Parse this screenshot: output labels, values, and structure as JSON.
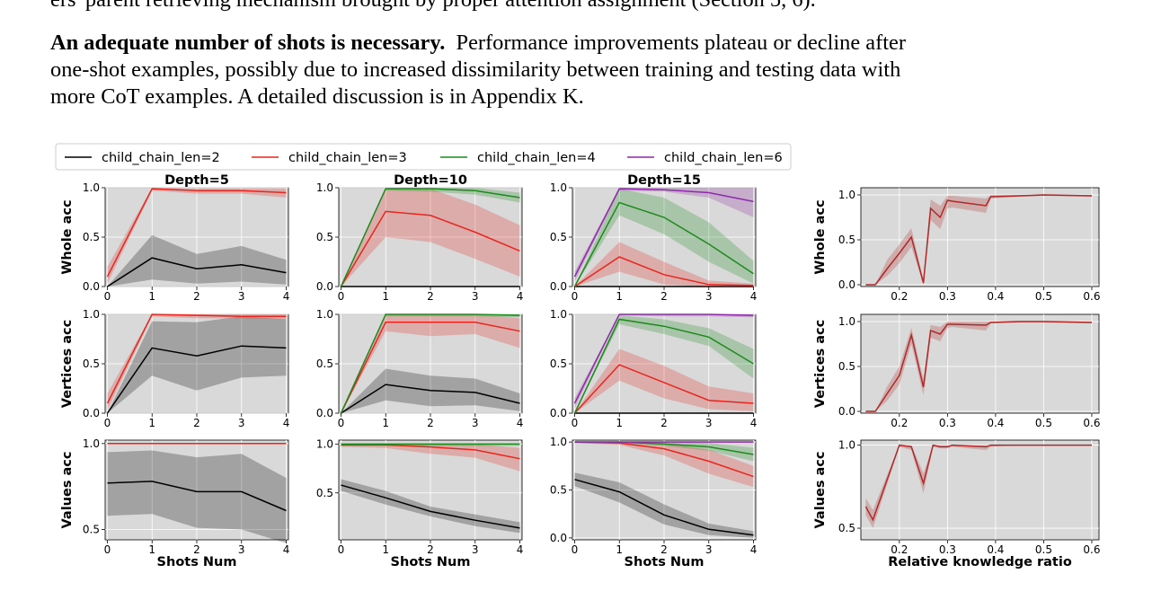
{
  "text": {
    "line0": "ers' parent retrieving mechanism brought by proper attention assignment (Section 5, 6).",
    "heading": "An adequate number of shots is necessary.",
    "line1_rest": "Performance improvements plateau or decline after",
    "line2": "one-shot examples, possibly due to increased dissimilarity between training and testing data with",
    "line3": "more CoT examples. A detailed discussion is in Appendix K."
  },
  "legend": [
    "child_chain_len=2",
    "child_chain_len=3",
    "child_chain_len=4",
    "child_chain_len=6"
  ],
  "colors": {
    "len2": "#000000",
    "len3": "#e8261f",
    "len4": "#1c8a1c",
    "len6": "#8e2aa8",
    "ratio": "#b02828",
    "panel_bg": "#d9d9d9"
  },
  "figure_labels": {
    "col_titles": [
      "Depth=5",
      "Depth=10",
      "Depth=15"
    ],
    "row_labels": [
      "Whole acc",
      "Vertices acc",
      "Values acc"
    ],
    "xlabel_shots": "Shots Num",
    "xlabel_ratio": "Relative knowledge ratio"
  },
  "chart_data": [
    {
      "type": "line",
      "panel": "depth5-whole",
      "title": "Depth=5",
      "ylabel": "Whole acc",
      "xlabel": "",
      "x": [
        0,
        1,
        2,
        3,
        4
      ],
      "ylim": [
        0,
        1
      ],
      "yticks": [
        0,
        0.5,
        1.0
      ],
      "series": [
        {
          "name": "child_chain_len=2",
          "values": [
            0.0,
            0.29,
            0.18,
            0.22,
            0.14
          ],
          "lower": [
            0.0,
            0.07,
            0.03,
            0.05,
            0.02
          ],
          "upper": [
            0.0,
            0.52,
            0.33,
            0.41,
            0.27
          ]
        },
        {
          "name": "child_chain_len=3",
          "values": [
            0.1,
            0.99,
            0.97,
            0.97,
            0.95
          ],
          "lower": [
            0.03,
            0.97,
            0.94,
            0.94,
            0.9
          ],
          "upper": [
            0.2,
            1.0,
            0.99,
            0.99,
            0.99
          ]
        }
      ]
    },
    {
      "type": "line",
      "panel": "depth10-whole",
      "title": "Depth=10",
      "ylabel": "",
      "xlabel": "",
      "x": [
        0,
        1,
        2,
        3,
        4
      ],
      "ylim": [
        0,
        1
      ],
      "yticks": [
        0,
        0.5,
        1.0
      ],
      "series": [
        {
          "name": "child_chain_len=2",
          "values": [
            0.0,
            0.0,
            0.0,
            0.0,
            0.0
          ]
        },
        {
          "name": "child_chain_len=3",
          "values": [
            0.0,
            0.76,
            0.72,
            0.55,
            0.36
          ],
          "lower": [
            0.0,
            0.5,
            0.45,
            0.28,
            0.1
          ],
          "upper": [
            0.0,
            0.99,
            0.99,
            0.83,
            0.62
          ]
        },
        {
          "name": "child_chain_len=4",
          "values": [
            0.0,
            0.99,
            0.99,
            0.97,
            0.9
          ],
          "lower": [
            0.0,
            0.97,
            0.96,
            0.93,
            0.85
          ],
          "upper": [
            0.0,
            1.0,
            1.0,
            1.0,
            0.95
          ]
        }
      ]
    },
    {
      "type": "line",
      "panel": "depth15-whole",
      "title": "Depth=15",
      "ylabel": "",
      "xlabel": "",
      "x": [
        0,
        1,
        2,
        3,
        4
      ],
      "ylim": [
        0,
        1
      ],
      "yticks": [
        0,
        0.5,
        1.0
      ],
      "series": [
        {
          "name": "child_chain_len=2",
          "values": [
            0.0,
            0.0,
            0.0,
            0.0,
            0.0
          ]
        },
        {
          "name": "child_chain_len=3",
          "values": [
            0.0,
            0.3,
            0.12,
            0.02,
            0.01
          ],
          "lower": [
            0.0,
            0.15,
            0.02,
            0.0,
            0.0
          ],
          "upper": [
            0.0,
            0.45,
            0.25,
            0.06,
            0.03
          ]
        },
        {
          "name": "child_chain_len=4",
          "values": [
            0.0,
            0.85,
            0.7,
            0.43,
            0.13
          ],
          "lower": [
            0.0,
            0.72,
            0.53,
            0.25,
            0.03
          ],
          "upper": [
            0.0,
            0.99,
            0.9,
            0.65,
            0.26
          ]
        },
        {
          "name": "child_chain_len=6",
          "values": [
            0.1,
            0.99,
            0.98,
            0.95,
            0.86
          ],
          "lower": [
            0.05,
            0.97,
            0.96,
            0.9,
            0.7
          ],
          "upper": [
            0.15,
            1.0,
            1.0,
            1.0,
            1.0
          ]
        }
      ]
    },
    {
      "type": "line",
      "panel": "depth5-vertices",
      "title": "",
      "ylabel": "Vertices acc",
      "xlabel": "",
      "x": [
        0,
        1,
        2,
        3,
        4
      ],
      "ylim": [
        0,
        1
      ],
      "yticks": [
        0,
        0.5,
        1.0
      ],
      "series": [
        {
          "name": "child_chain_len=2",
          "values": [
            0.0,
            0.66,
            0.58,
            0.68,
            0.66
          ],
          "lower": [
            0.0,
            0.38,
            0.23,
            0.36,
            0.38
          ],
          "upper": [
            0.0,
            0.93,
            0.92,
            0.98,
            0.95
          ]
        },
        {
          "name": "child_chain_len=3",
          "values": [
            0.1,
            1.0,
            0.99,
            0.98,
            0.98
          ],
          "lower": [
            0.03,
            0.98,
            0.96,
            0.96,
            0.95
          ],
          "upper": [
            0.2,
            1.0,
            1.0,
            1.0,
            1.0
          ]
        }
      ]
    },
    {
      "type": "line",
      "panel": "depth10-vertices",
      "title": "",
      "ylabel": "",
      "xlabel": "",
      "x": [
        0,
        1,
        2,
        3,
        4
      ],
      "ylim": [
        0,
        1
      ],
      "yticks": [
        0,
        0.5,
        1.0
      ],
      "series": [
        {
          "name": "child_chain_len=2",
          "values": [
            0.0,
            0.29,
            0.23,
            0.21,
            0.1
          ],
          "lower": [
            0.0,
            0.13,
            0.07,
            0.08,
            0.02
          ],
          "upper": [
            0.0,
            0.45,
            0.38,
            0.35,
            0.2
          ]
        },
        {
          "name": "child_chain_len=3",
          "values": [
            0.0,
            0.92,
            0.92,
            0.92,
            0.83
          ],
          "lower": [
            0.0,
            0.83,
            0.78,
            0.8,
            0.66
          ],
          "upper": [
            0.0,
            1.0,
            1.0,
            1.0,
            0.96
          ]
        },
        {
          "name": "child_chain_len=4",
          "values": [
            0.0,
            1.0,
            1.0,
            1.0,
            0.99
          ],
          "lower": [
            0.0,
            0.98,
            0.98,
            0.98,
            0.97
          ],
          "upper": [
            0.0,
            1.0,
            1.0,
            1.0,
            1.0
          ]
        }
      ]
    },
    {
      "type": "line",
      "panel": "depth15-vertices",
      "title": "",
      "ylabel": "",
      "xlabel": "",
      "x": [
        0,
        1,
        2,
        3,
        4
      ],
      "ylim": [
        0,
        1
      ],
      "yticks": [
        0,
        0.5,
        1.0
      ],
      "series": [
        {
          "name": "child_chain_len=2",
          "values": [
            0.0,
            0.0,
            0.0,
            0.0,
            0.0
          ]
        },
        {
          "name": "child_chain_len=3",
          "values": [
            0.0,
            0.49,
            0.31,
            0.13,
            0.1
          ],
          "lower": [
            0.0,
            0.33,
            0.15,
            0.04,
            0.02
          ],
          "upper": [
            0.0,
            0.65,
            0.48,
            0.27,
            0.2
          ]
        },
        {
          "name": "child_chain_len=4",
          "values": [
            0.0,
            0.95,
            0.88,
            0.77,
            0.5
          ],
          "lower": [
            0.0,
            0.9,
            0.8,
            0.68,
            0.35
          ],
          "upper": [
            0.0,
            0.99,
            0.95,
            0.86,
            0.65
          ]
        },
        {
          "name": "child_chain_len=6",
          "values": [
            0.1,
            1.0,
            1.0,
            1.0,
            0.99
          ],
          "lower": [
            0.05,
            0.99,
            0.98,
            0.98,
            0.97
          ],
          "upper": [
            0.15,
            1.0,
            1.0,
            1.0,
            1.0
          ]
        }
      ]
    },
    {
      "type": "line",
      "panel": "depth5-values",
      "title": "",
      "ylabel": "Values acc",
      "xlabel": "Shots Num",
      "x": [
        0,
        1,
        2,
        3,
        4
      ],
      "ylim": [
        0.44,
        1.02
      ],
      "yticks": [
        0.5,
        1.0
      ],
      "series": [
        {
          "name": "child_chain_len=2",
          "values": [
            0.77,
            0.78,
            0.72,
            0.72,
            0.61
          ],
          "lower": [
            0.58,
            0.59,
            0.51,
            0.5,
            0.42
          ],
          "upper": [
            0.95,
            0.96,
            0.92,
            0.94,
            0.8
          ]
        },
        {
          "name": "child_chain_len=3",
          "values": [
            1.0,
            1.0,
            1.0,
            1.0,
            1.0
          ]
        }
      ]
    },
    {
      "type": "line",
      "panel": "depth10-values",
      "title": "",
      "ylabel": "",
      "xlabel": "Shots Num",
      "x": [
        0,
        1,
        2,
        3,
        4
      ],
      "ylim": [
        0.02,
        1.04
      ],
      "yticks": [
        0.5,
        1.0
      ],
      "series": [
        {
          "name": "child_chain_len=2",
          "values": [
            0.58,
            0.45,
            0.31,
            0.22,
            0.14
          ],
          "lower": [
            0.52,
            0.38,
            0.26,
            0.16,
            0.09
          ],
          "upper": [
            0.64,
            0.52,
            0.36,
            0.28,
            0.2
          ]
        },
        {
          "name": "child_chain_len=3",
          "values": [
            0.99,
            0.99,
            0.97,
            0.94,
            0.85
          ],
          "lower": [
            0.97,
            0.96,
            0.9,
            0.86,
            0.72
          ],
          "upper": [
            1.0,
            1.0,
            1.0,
            1.0,
            0.96
          ]
        },
        {
          "name": "child_chain_len=4",
          "values": [
            1.0,
            1.0,
            1.0,
            1.0,
            1.0
          ],
          "lower": [
            0.98,
            0.98,
            0.98,
            0.98,
            0.98
          ],
          "upper": [
            1.0,
            1.0,
            1.0,
            1.0,
            1.0
          ]
        }
      ]
    },
    {
      "type": "line",
      "panel": "depth15-values",
      "title": "",
      "ylabel": "",
      "xlabel": "Shots Num",
      "x": [
        0,
        1,
        2,
        3,
        4
      ],
      "ylim": [
        -0.02,
        1.02
      ],
      "yticks": [
        0,
        0.5,
        1.0
      ],
      "series": [
        {
          "name": "child_chain_len=2",
          "values": [
            0.61,
            0.48,
            0.24,
            0.09,
            0.03
          ],
          "lower": [
            0.54,
            0.37,
            0.14,
            0.03,
            0.0
          ],
          "upper": [
            0.68,
            0.58,
            0.35,
            0.15,
            0.07
          ]
        },
        {
          "name": "child_chain_len=3",
          "values": [
            1.0,
            0.99,
            0.93,
            0.8,
            0.64
          ],
          "lower": [
            0.99,
            0.97,
            0.86,
            0.67,
            0.53
          ],
          "upper": [
            1.0,
            1.0,
            0.99,
            0.92,
            0.75
          ]
        },
        {
          "name": "child_chain_len=4",
          "values": [
            1.0,
            1.0,
            0.98,
            0.95,
            0.87
          ],
          "lower": [
            0.99,
            0.99,
            0.96,
            0.91,
            0.8
          ],
          "upper": [
            1.0,
            1.0,
            1.0,
            0.99,
            0.94
          ]
        },
        {
          "name": "child_chain_len=6",
          "values": [
            1.0,
            1.0,
            1.0,
            1.0,
            1.0
          ]
        }
      ]
    },
    {
      "type": "line",
      "panel": "ratio-whole",
      "title": "",
      "ylabel": "Whole acc",
      "xlabel": "",
      "xlim": [
        0.12,
        0.615
      ],
      "xticks": [
        0.2,
        0.3,
        0.4,
        0.5,
        0.6
      ],
      "ylim": [
        -0.02,
        1.08
      ],
      "yticks": [
        0,
        0.5,
        1.0
      ],
      "series": [
        {
          "name": "",
          "x": [
            0.13,
            0.15,
            0.175,
            0.2,
            0.225,
            0.25,
            0.265,
            0.285,
            0.3,
            0.31,
            0.38,
            0.39,
            0.45,
            0.5,
            0.6
          ],
          "values": [
            0.0,
            0.0,
            0.18,
            0.35,
            0.53,
            0.02,
            0.85,
            0.75,
            0.94,
            0.93,
            0.88,
            0.98,
            0.99,
            1.0,
            0.99
          ],
          "lower": [
            0.0,
            0.0,
            0.1,
            0.24,
            0.42,
            0.0,
            0.72,
            0.62,
            0.85,
            0.86,
            0.8,
            0.96,
            0.98,
            0.99,
            0.98
          ],
          "upper": [
            0.0,
            0.0,
            0.28,
            0.45,
            0.63,
            0.05,
            0.95,
            0.88,
            0.99,
            0.99,
            0.96,
            1.0,
            1.0,
            1.0,
            1.0
          ]
        }
      ]
    },
    {
      "type": "line",
      "panel": "ratio-vertices",
      "title": "",
      "ylabel": "Vertices acc",
      "xlabel": "",
      "xlim": [
        0.12,
        0.615
      ],
      "xticks": [
        0.2,
        0.3,
        0.4,
        0.5,
        0.6
      ],
      "ylim": [
        -0.02,
        1.08
      ],
      "yticks": [
        0,
        0.5,
        1.0
      ],
      "series": [
        {
          "name": "",
          "x": [
            0.13,
            0.15,
            0.175,
            0.2,
            0.225,
            0.25,
            0.265,
            0.285,
            0.3,
            0.31,
            0.38,
            0.39,
            0.45,
            0.5,
            0.6
          ],
          "values": [
            0.0,
            0.0,
            0.2,
            0.4,
            0.85,
            0.27,
            0.9,
            0.86,
            0.97,
            0.97,
            0.96,
            0.99,
            1.0,
            1.0,
            0.99
          ],
          "lower": [
            0.0,
            0.0,
            0.12,
            0.3,
            0.75,
            0.18,
            0.82,
            0.78,
            0.93,
            0.94,
            0.9,
            0.98,
            0.99,
            0.99,
            0.98
          ],
          "upper": [
            0.0,
            0.0,
            0.28,
            0.5,
            0.93,
            0.36,
            0.96,
            0.94,
            1.0,
            1.0,
            1.0,
            1.0,
            1.0,
            1.0,
            1.0
          ]
        }
      ]
    },
    {
      "type": "line",
      "panel": "ratio-values",
      "title": "",
      "ylabel": "Values acc",
      "xlabel": "Relative knowledge ratio",
      "xlim": [
        0.12,
        0.615
      ],
      "xticks": [
        0.2,
        0.3,
        0.4,
        0.5,
        0.6
      ],
      "ylim": [
        0.43,
        1.03
      ],
      "yticks": [
        0.5,
        1.0
      ],
      "series": [
        {
          "name": "",
          "x": [
            0.13,
            0.145,
            0.2,
            0.225,
            0.25,
            0.27,
            0.285,
            0.3,
            0.31,
            0.38,
            0.39,
            0.45,
            0.5,
            0.6
          ],
          "values": [
            0.63,
            0.55,
            1.0,
            0.99,
            0.77,
            1.0,
            0.99,
            0.99,
            1.0,
            0.99,
            1.0,
            1.0,
            1.0,
            1.0
          ],
          "lower": [
            0.58,
            0.5,
            0.99,
            0.97,
            0.71,
            0.99,
            0.98,
            0.98,
            0.99,
            0.97,
            0.99,
            1.0,
            1.0,
            1.0
          ],
          "upper": [
            0.68,
            0.61,
            1.0,
            1.0,
            0.83,
            1.0,
            1.0,
            1.0,
            1.0,
            1.0,
            1.0,
            1.0,
            1.0,
            1.0
          ]
        }
      ]
    }
  ]
}
